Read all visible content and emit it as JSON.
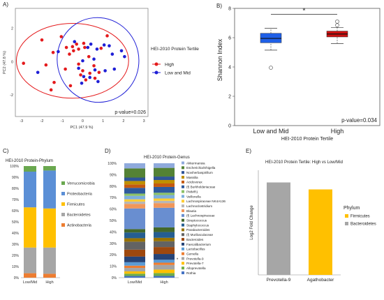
{
  "panels": {
    "a": "A)",
    "b": "B)",
    "c": "C)",
    "d": "D)",
    "e": "E)"
  },
  "colors": {
    "high": "#e41a1c",
    "low_mid": "#1f1fd6",
    "verrucomicrobia": "#6aa84f",
    "proteobacteria": "#5b8fd6",
    "firmicutes": "#ffc000",
    "bacteroidetes": "#a6a6a6",
    "actinobacteria": "#ed7d31",
    "box_low_mid": "#1f5fe6",
    "box_high": "#cc1111"
  },
  "chart_data": [
    {
      "id": "A",
      "type": "scatter",
      "xlabel": "PC1 (47.9 %)",
      "ylabel": "PC2 (47.8 %)",
      "xlim": [
        -3.3,
        3.2
      ],
      "ylim": [
        -3.3,
        3.2
      ],
      "xticks": [
        -3,
        -2,
        -1,
        0,
        1,
        2,
        3
      ],
      "yticks": [
        -2,
        0,
        2
      ],
      "legend_title": "HEI-2010 Protein Tertile",
      "annotation": "p-value=0.026",
      "series": [
        {
          "name": "High",
          "color": "#e41a1c",
          "ellipse": {
            "cx": -0.5,
            "cy": 0.05,
            "rx": 2.75,
            "ry": 2.25
          },
          "points": [
            [
              -2.9,
              -0.1
            ],
            [
              -2.0,
              1.3
            ],
            [
              -1.8,
              -0.2
            ],
            [
              -1.55,
              -1.7
            ],
            [
              -1.45,
              0.55
            ],
            [
              -1.4,
              -1.25
            ],
            [
              -1.05,
              1.5
            ],
            [
              -0.8,
              0.85
            ],
            [
              -0.65,
              0.45
            ],
            [
              -0.5,
              0.9
            ],
            [
              -0.45,
              0.65
            ],
            [
              -0.3,
              1.05
            ],
            [
              -0.2,
              0.75
            ],
            [
              -0.2,
              -0.15
            ],
            [
              -0.1,
              -0.8
            ],
            [
              0.0,
              -0.55
            ],
            [
              0.05,
              1.1
            ],
            [
              0.1,
              0.85
            ],
            [
              0.15,
              -1.1
            ],
            [
              0.3,
              0.3
            ],
            [
              0.35,
              -0.7
            ],
            [
              0.55,
              -0.25
            ],
            [
              0.6,
              -1.0
            ],
            [
              0.8,
              -0.65
            ],
            [
              0.9,
              0.8
            ],
            [
              1.2,
              1.55
            ],
            [
              -0.85,
              -0.45
            ],
            [
              -0.6,
              -1.45
            ]
          ]
        },
        {
          "name": "Low and Mid",
          "color": "#1f1fd6",
          "ellipse": {
            "cx": 0.75,
            "cy": 0.1,
            "rx": 2.0,
            "ry": 2.55,
            "rotation": -12
          },
          "points": [
            [
              -2.2,
              -0.65
            ],
            [
              -1.2,
              0.6
            ],
            [
              -0.4,
              1.2
            ],
            [
              -0.2,
              -0.4
            ],
            [
              0.0,
              0.05
            ],
            [
              0.05,
              -0.9
            ],
            [
              0.25,
              0.85
            ],
            [
              0.35,
              -0.95
            ],
            [
              0.4,
              1.05
            ],
            [
              0.6,
              -0.5
            ],
            [
              0.7,
              0.75
            ],
            [
              0.75,
              -1.2
            ],
            [
              1.05,
              1.0
            ],
            [
              1.1,
              -0.55
            ],
            [
              1.3,
              0.95
            ],
            [
              1.45,
              0.45
            ],
            [
              1.9,
              0.65
            ],
            [
              2.05,
              0.3
            ],
            [
              -0.05,
              -1.3
            ],
            [
              0.55,
              0.15
            ],
            [
              1.55,
              -0.45
            ]
          ]
        }
      ]
    },
    {
      "id": "B",
      "type": "box",
      "ylabel": "Shannon Index",
      "xlabel": "HEI-2010 Protein Tertile",
      "categories": [
        "Low and Mid",
        "High"
      ],
      "ylim": [
        0,
        8
      ],
      "yticks": [
        0,
        2,
        4,
        6,
        8
      ],
      "annotation": "p-value=0.034",
      "significance": "*",
      "boxes": [
        {
          "name": "Low and Mid",
          "whisker_low": 5.15,
          "q1": 5.65,
          "median": 5.95,
          "q3": 6.3,
          "whisker_high": 6.65,
          "outliers": [
            3.95
          ]
        },
        {
          "name": "High",
          "whisker_low": 5.6,
          "q1": 6.05,
          "median": 6.25,
          "q3": 6.45,
          "whisker_high": 6.7,
          "outliers": [
            7.1,
            6.85
          ]
        }
      ]
    },
    {
      "id": "C",
      "type": "stacked_bar",
      "title": "HEI-2010 Protein-Phylum",
      "categories": [
        "Low/Mid",
        "High"
      ],
      "yticks": [
        "0%",
        "10%",
        "20%",
        "30%",
        "40%",
        "50%",
        "60%",
        "70%",
        "80%",
        "90%",
        "100%"
      ],
      "series": [
        {
          "name": "Actinobacteria",
          "color": "#ed7d31",
          "values": [
            4,
            3.5
          ]
        },
        {
          "name": "Bacteroidetes",
          "color": "#a6a6a6",
          "values": [
            23,
            23.5
          ]
        },
        {
          "name": "Firmicutes",
          "color": "#ffc000",
          "values": [
            36,
            35
          ]
        },
        {
          "name": "Proteobacteria",
          "color": "#5b8fd6",
          "values": [
            32,
            34
          ]
        },
        {
          "name": "Verrucomicrobia",
          "color": "#6aa84f",
          "values": [
            5,
            4
          ]
        }
      ],
      "legend_order": [
        "Verrucomicrobia",
        "Proteobacteria",
        "Firmicutes",
        "Bacteroidetes",
        "Actinobacteria"
      ]
    },
    {
      "id": "D",
      "type": "stacked_bar",
      "title": "HEI-2010 Protein-Genus",
      "categories": [
        "Low/Mid",
        "High"
      ],
      "yticks": [
        "0%",
        "10%",
        "20%",
        "30%",
        "40%",
        "50%",
        "60%",
        "70%",
        "80%",
        "90%",
        "100%"
      ],
      "legend_marker": "*",
      "legend_marker_target": "Prevotella-9",
      "legend": [
        "Akkermansia",
        "Escherichia/Shigella",
        "Noviherbaspirillum",
        "Massilia",
        "Acidovorax",
        "(f) Burkholderiaceae",
        "PMMR1",
        "Veillonella",
        "Lachnospiraceae NK4A136",
        "Lachnoclostridium",
        "Blautia",
        "(f) Lachnospiraceae",
        "Streptococcus",
        "Staphylococcus",
        "Parabacteroides",
        "(f) Muribaculaceae",
        "Bacteroides",
        "Faecalibacterium",
        "Lactobacillus",
        "Gemella",
        "Prevotella-9",
        "Prevotella-7",
        "Alloprevotella",
        "Rothia"
      ],
      "series": [
        {
          "name": "Rothia",
          "color": "#4472c4",
          "values": [
            1.5,
            1.5
          ]
        },
        {
          "name": "Alloprevotella",
          "color": "#70ad47",
          "values": [
            2,
            2.5
          ]
        },
        {
          "name": "Prevotella-7",
          "color": "#ffc000",
          "values": [
            2,
            3
          ]
        },
        {
          "name": "Prevotella-9",
          "color": "#a5a5a5",
          "values": [
            3,
            4
          ]
        },
        {
          "name": "Gemella",
          "color": "#ed7d31",
          "values": [
            2,
            2
          ]
        },
        {
          "name": "Lactobacillus",
          "color": "#5b9bd5",
          "values": [
            3,
            2.5
          ]
        },
        {
          "name": "Faecalibacterium",
          "color": "#264478",
          "values": [
            5,
            5
          ]
        },
        {
          "name": "Bacteroides",
          "color": "#9e480e",
          "values": [
            6,
            6
          ]
        },
        {
          "name": "(f) Muribaculaceae",
          "color": "#636363",
          "values": [
            7,
            5
          ]
        },
        {
          "name": "Parabacteroides",
          "color": "#997300",
          "values": [
            3,
            3
          ]
        },
        {
          "name": "Staphylococcus",
          "color": "#255e91",
          "values": [
            5,
            5
          ]
        },
        {
          "name": "Streptococcus",
          "color": "#43682b",
          "values": [
            3,
            4
          ]
        },
        {
          "name": "(f) Lachnospiraceae",
          "color": "#698ed0",
          "values": [
            18,
            17
          ]
        },
        {
          "name": "Blautia",
          "color": "#f1975a",
          "values": [
            4,
            4
          ]
        },
        {
          "name": "Lachnoclostridium",
          "color": "#b7b7b7",
          "values": [
            2,
            2
          ]
        },
        {
          "name": "Lachnospiraceae NK4A136",
          "color": "#ffcd33",
          "values": [
            2,
            2
          ]
        },
        {
          "name": "Veillonella",
          "color": "#7cafdd",
          "values": [
            3,
            3
          ]
        },
        {
          "name": "PMMR1",
          "color": "#8cc168",
          "values": [
            2,
            2
          ]
        },
        {
          "name": "(f) Burkholderiaceae",
          "color": "#2e5a9e",
          "values": [
            5,
            5
          ]
        },
        {
          "name": "Acidovorax",
          "color": "#c55a11",
          "values": [
            3,
            3
          ]
        },
        {
          "name": "Massilia",
          "color": "#bf9000",
          "values": [
            3,
            3
          ]
        },
        {
          "name": "Noviherbaspirillum",
          "color": "#2f5597",
          "values": [
            3,
            3
          ]
        },
        {
          "name": "Escherichia/Shigella",
          "color": "#548235",
          "values": [
            8,
            7.5
          ]
        },
        {
          "name": "Akkermansia",
          "color": "#8faadc",
          "values": [
            4.5,
            4
          ]
        }
      ]
    },
    {
      "id": "E",
      "type": "bar",
      "title": "HEI-2010 Protein Tertile: High vs Low/Mid",
      "ylabel": "Log2 Fold Change",
      "categories": [
        "Prevotella-9",
        "Agathobacter"
      ],
      "values": [
        2.65,
        2.45
      ],
      "colors": [
        "#a6a6a6",
        "#ffc000"
      ],
      "ylim": [
        0,
        3
      ],
      "legend_title": "Phylum",
      "legend": [
        {
          "name": "Firmicutes",
          "color": "#ffc000"
        },
        {
          "name": "Bacteroidetes",
          "color": "#a6a6a6"
        }
      ]
    }
  ]
}
